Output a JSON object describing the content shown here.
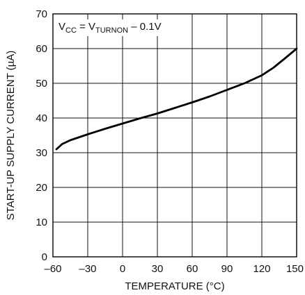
{
  "chart_data": {
    "type": "line",
    "xlabel": "TEMPERATURE (°C)",
    "ylabel": "START-UP SUPPLY CURRENT (µA)",
    "xlim": [
      -60,
      150
    ],
    "ylim": [
      0,
      70
    ],
    "x_ticks": [
      "–60",
      "–30",
      "0",
      "30",
      "60",
      "90",
      "120",
      "150"
    ],
    "y_ticks": [
      "0",
      "10",
      "20",
      "30",
      "40",
      "50",
      "60",
      "70"
    ],
    "grid": true,
    "annotation": {
      "v1": "V",
      "v1_sub": "CC",
      "eq": " = V",
      "v2_sub": "TURNON",
      "rest": " – 0.1V"
    },
    "series": [
      {
        "x": [
          -57,
          -52,
          -45,
          -30,
          -15,
          0,
          15,
          30,
          45,
          60,
          75,
          90,
          105,
          120,
          130,
          140,
          150
        ],
        "y": [
          31.0,
          32.5,
          33.6,
          35.3,
          36.9,
          38.4,
          39.9,
          41.3,
          42.9,
          44.5,
          46.2,
          48.1,
          50.0,
          52.3,
          54.5,
          57.2,
          60.0
        ]
      }
    ]
  }
}
